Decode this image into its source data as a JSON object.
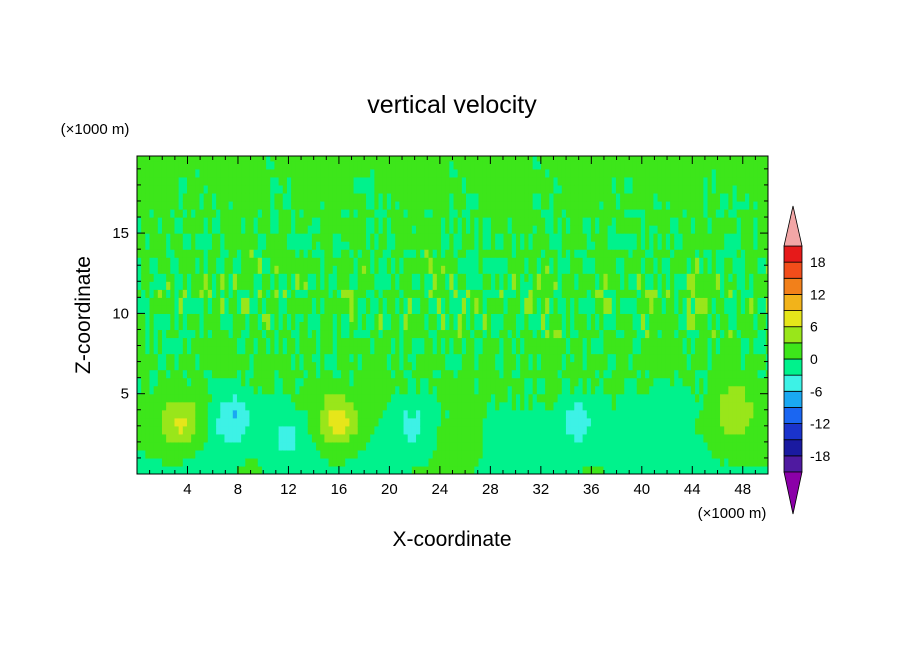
{
  "chart_data": {
    "type": "heatmap",
    "title": "vertical velocity",
    "xlabel": "X-coordinate",
    "ylabel": "Z-coordinate",
    "x_unit": "(×1000 m)",
    "y_unit": "(×1000 m)",
    "xlim": [
      0,
      50
    ],
    "ylim": [
      0,
      19.8
    ],
    "x_ticks": [
      4,
      8,
      12,
      16,
      20,
      24,
      28,
      32,
      36,
      40,
      44,
      48
    ],
    "y_ticks": [
      5,
      10,
      15
    ],
    "colorbar": {
      "levels": [
        -21,
        -18,
        -15,
        -12,
        -9,
        -6,
        -3,
        0,
        3,
        6,
        9,
        12,
        15,
        18,
        21
      ],
      "labels": [
        18,
        12,
        6,
        0,
        -6,
        -12,
        -18
      ],
      "colors": [
        "#8b00a8",
        "#4f1aa0",
        "#1a1aa0",
        "#1a33cc",
        "#1a66f2",
        "#1aa8f2",
        "#3df2e6",
        "#00f28c",
        "#3de61a",
        "#99e61a",
        "#e6e61a",
        "#f2b31a",
        "#f2801a",
        "#f24d1a",
        "#e61a1a",
        "#f2a6a6"
      ],
      "extend": "both"
    },
    "features": [
      {
        "x": 3.4,
        "z": 3.1,
        "w": 7.2
      },
      {
        "x": 7.6,
        "z": 3.4,
        "w": -6.5
      },
      {
        "x": 11.8,
        "z": 2.2,
        "w": -3.5
      },
      {
        "x": 16.0,
        "z": 3.3,
        "w": 7.8
      },
      {
        "x": 21.8,
        "z": 3.0,
        "w": -4.5
      },
      {
        "x": 25.8,
        "z": 1.8,
        "w": 3.6
      },
      {
        "x": 28.5,
        "z": 2.4,
        "w": -1.8
      },
      {
        "x": 35.0,
        "z": 3.2,
        "w": -5.0
      },
      {
        "x": 42.0,
        "z": 4.2,
        "w": -3.0
      },
      {
        "x": 47.3,
        "z": 3.8,
        "w": 5.5
      }
    ]
  }
}
